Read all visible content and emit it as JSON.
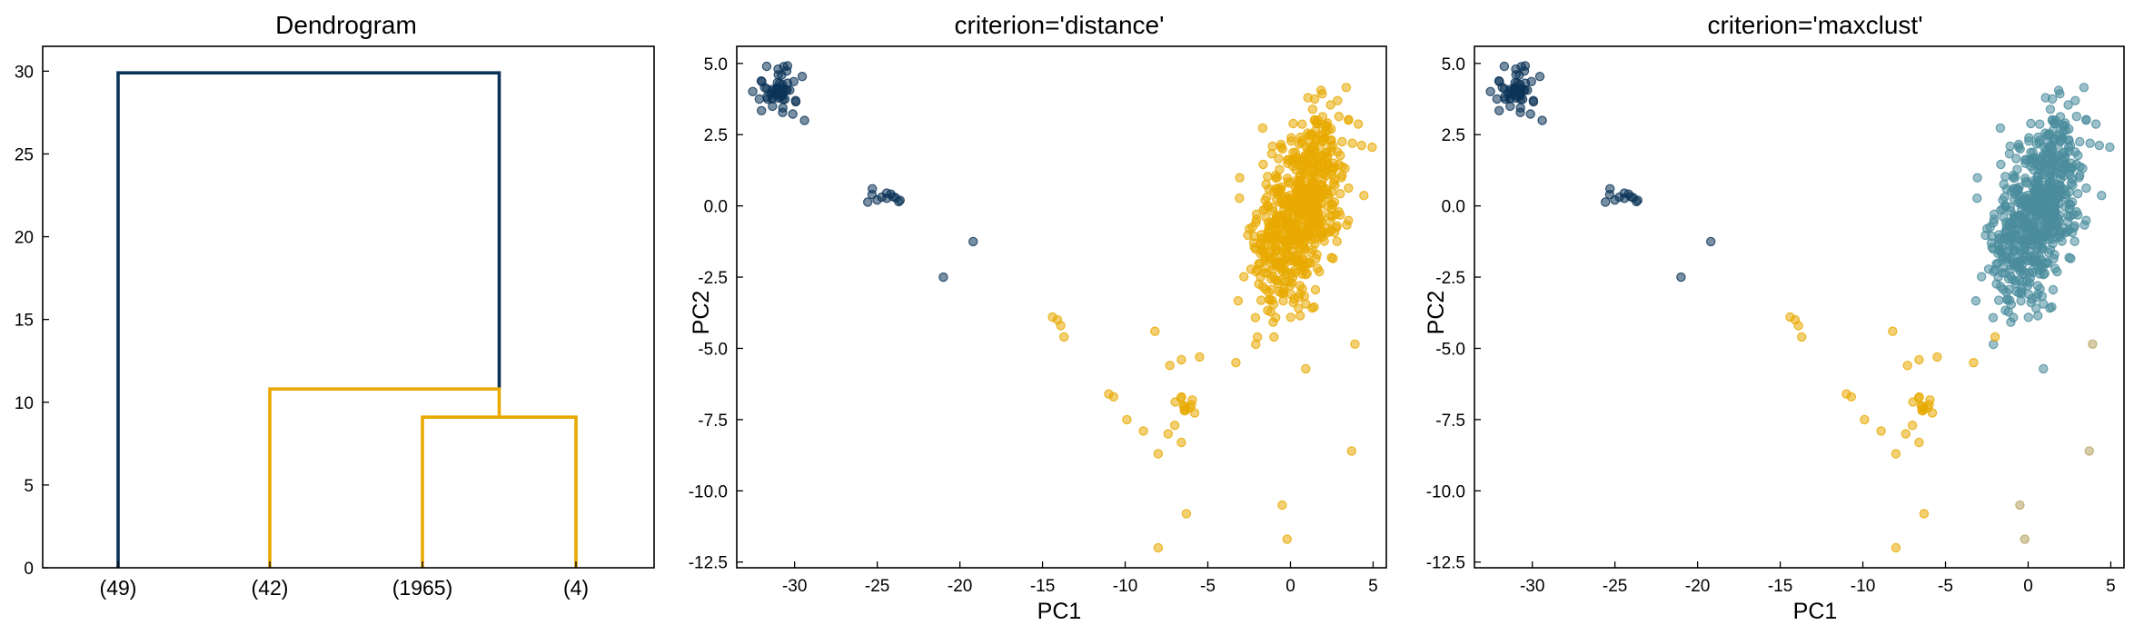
{
  "colors": {
    "cluster_dark": "#0b3358",
    "cluster_gold": "#e8a900",
    "cluster_teal": "#4a8c9c",
    "cluster_olive": "#b7a362"
  },
  "chart_data": [
    {
      "type": "dendrogram",
      "title": "Dendrogram",
      "xlabel": "",
      "ylabel": "",
      "ylim": [
        0,
        31.5
      ],
      "yticks": [
        "0",
        "5",
        "10",
        "15",
        "20",
        "25",
        "30"
      ],
      "leaves": [
        "(49)",
        "(42)",
        "(1965)",
        "(4)"
      ],
      "links": [
        {
          "from_x": 0,
          "to_x": 2.5,
          "height": 29.9,
          "child_heights": [
            0,
            10.8
          ],
          "color": "dark"
        },
        {
          "from_x": 1,
          "to_x": 2.5,
          "height": 10.8,
          "child_heights": [
            0,
            9.1
          ],
          "color": "gold"
        },
        {
          "from_x": 2,
          "to_x": 3,
          "height": 9.1,
          "child_heights": [
            0,
            0
          ],
          "color": "gold"
        }
      ]
    },
    {
      "type": "scatter",
      "title": "criterion='distance'",
      "xlabel": "PC1",
      "ylabel": "PC2",
      "xlim": [
        -33.5,
        5.8
      ],
      "ylim": [
        -12.7,
        5.6
      ],
      "xticks": [
        "-30",
        "-25",
        "-20",
        "-15",
        "-10",
        "-5",
        "0",
        "5"
      ],
      "yticks": [
        "-12.5",
        "-10.0",
        "-7.5",
        "-5.0",
        "-2.5",
        "0.0",
        "2.5",
        "5.0"
      ],
      "series": [
        {
          "color": "dark",
          "groups": [
            {
              "kind": "blob",
              "cx": -31.0,
              "cy": 4.0,
              "sx": 0.7,
              "sy": 0.4,
              "n": 49
            },
            {
              "kind": "blob",
              "cx": -24.5,
              "cy": 0.3,
              "sx": 0.5,
              "sy": 0.2,
              "n": 10
            },
            {
              "kind": "points",
              "pts": [
                [
                  -31.0,
                  4.8
                ],
                [
                  -29.4,
                  3.0
                ],
                [
                  -25.3,
                  0.6
                ],
                [
                  -23.7,
                  0.15
                ],
                [
                  -21.0,
                  -2.5
                ],
                [
                  -19.2,
                  -1.25
                ]
              ]
            }
          ]
        },
        {
          "color": "gold",
          "groups": [
            {
              "kind": "blob",
              "cx": 0.6,
              "cy": -0.2,
              "sx": 1.2,
              "sy": 1.7,
              "n": 1965
            },
            {
              "kind": "blob",
              "cx": -6.5,
              "cy": -7.0,
              "sx": 0.4,
              "sy": 0.2,
              "n": 12
            },
            {
              "kind": "points",
              "pts": [
                [
                  -14.4,
                  -3.9
                ],
                [
                  -13.9,
                  -4.2
                ],
                [
                  -13.7,
                  -4.6
                ],
                [
                  -14.1,
                  -4.0
                ],
                [
                  -11.0,
                  -6.6
                ],
                [
                  -10.7,
                  -6.7
                ],
                [
                  -9.9,
                  -7.5
                ],
                [
                  -8.9,
                  -7.9
                ],
                [
                  -8.2,
                  -4.4
                ],
                [
                  -8.0,
                  -8.7
                ],
                [
                  -7.4,
                  -8.0
                ],
                [
                  -7.0,
                  -7.7
                ],
                [
                  -6.6,
                  -8.3
                ],
                [
                  -7.3,
                  -5.6
                ],
                [
                  -6.6,
                  -5.4
                ],
                [
                  -5.5,
                  -5.3
                ],
                [
                  -3.3,
                  -5.5
                ],
                [
                  -2.0,
                  -4.6
                ],
                [
                  -0.5,
                  -10.5
                ],
                [
                  -0.2,
                  -11.7
                ],
                [
                  -6.3,
                  -10.8
                ],
                [
                  -8.0,
                  -12.0
                ],
                [
                  3.7,
                  -8.6
                ],
                [
                  3.9,
                  -4.85
                ],
                [
                  -1.0,
                  -4.6
                ]
              ]
            }
          ]
        }
      ]
    },
    {
      "type": "scatter",
      "title": "criterion='maxclust'",
      "xlabel": "PC1",
      "ylabel": "PC2",
      "xlim": [
        -33.5,
        5.8
      ],
      "ylim": [
        -12.7,
        5.6
      ],
      "xticks": [
        "-30",
        "-25",
        "-20",
        "-15",
        "-10",
        "-5",
        "0",
        "5"
      ],
      "yticks": [
        "-12.5",
        "-10.0",
        "-7.5",
        "-5.0",
        "-2.5",
        "0.0",
        "2.5",
        "5.0"
      ],
      "series": [
        {
          "color": "dark",
          "groups": [
            {
              "kind": "blob",
              "cx": -31.0,
              "cy": 4.0,
              "sx": 0.7,
              "sy": 0.4,
              "n": 49
            },
            {
              "kind": "blob",
              "cx": -24.5,
              "cy": 0.3,
              "sx": 0.5,
              "sy": 0.2,
              "n": 10
            },
            {
              "kind": "points",
              "pts": [
                [
                  -31.0,
                  4.8
                ],
                [
                  -29.4,
                  3.0
                ],
                [
                  -25.3,
                  0.6
                ],
                [
                  -23.7,
                  0.15
                ],
                [
                  -21.0,
                  -2.5
                ],
                [
                  -19.2,
                  -1.25
                ]
              ]
            }
          ]
        },
        {
          "color": "teal",
          "groups": [
            {
              "kind": "blob",
              "cx": 0.6,
              "cy": -0.2,
              "sx": 1.2,
              "sy": 1.7,
              "n": 1965
            }
          ]
        },
        {
          "color": "gold",
          "groups": [
            {
              "kind": "blob",
              "cx": -6.5,
              "cy": -7.0,
              "sx": 0.4,
              "sy": 0.2,
              "n": 12
            },
            {
              "kind": "points",
              "pts": [
                [
                  -14.4,
                  -3.9
                ],
                [
                  -13.9,
                  -4.2
                ],
                [
                  -13.7,
                  -4.6
                ],
                [
                  -14.1,
                  -4.0
                ],
                [
                  -11.0,
                  -6.6
                ],
                [
                  -10.7,
                  -6.7
                ],
                [
                  -9.9,
                  -7.5
                ],
                [
                  -8.9,
                  -7.9
                ],
                [
                  -8.2,
                  -4.4
                ],
                [
                  -8.0,
                  -8.7
                ],
                [
                  -7.4,
                  -8.0
                ],
                [
                  -7.0,
                  -7.7
                ],
                [
                  -6.6,
                  -8.3
                ],
                [
                  -7.3,
                  -5.6
                ],
                [
                  -6.6,
                  -5.4
                ],
                [
                  -5.5,
                  -5.3
                ],
                [
                  -3.3,
                  -5.5
                ],
                [
                  -2.0,
                  -4.6
                ],
                [
                  -6.3,
                  -10.8
                ],
                [
                  -8.0,
                  -12.0
                ]
              ]
            }
          ]
        },
        {
          "color": "olive",
          "groups": [
            {
              "kind": "points",
              "pts": [
                [
                  -0.5,
                  -10.5
                ],
                [
                  -0.2,
                  -11.7
                ],
                [
                  3.7,
                  -8.6
                ],
                [
                  3.9,
                  -4.85
                ]
              ]
            }
          ]
        }
      ]
    }
  ]
}
